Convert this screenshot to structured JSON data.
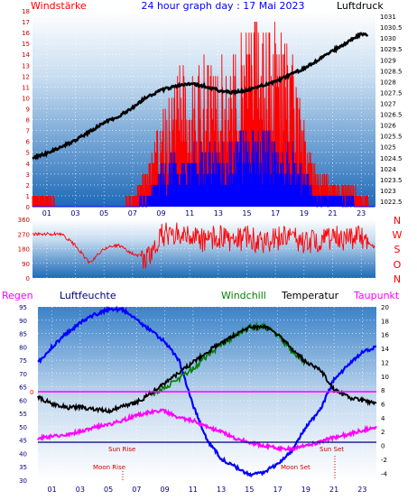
{
  "header": {
    "left_label": "Windstärke",
    "title": "24 hour graph day : 17 Mai 2023",
    "right_label": "Luftdruck"
  },
  "mid": {
    "compass": [
      "N",
      "W",
      "S",
      "O",
      "N"
    ]
  },
  "bottom_header": {
    "regen": "Regen",
    "luftfeuchte": "Luftfeuchte",
    "windchill": "Windchill",
    "temperatur": "Temperatur",
    "taupunkt": "Taupunkt"
  },
  "annotations": {
    "sun_rise": "Sun Rise",
    "sun_set": "Sun Set",
    "moon_rise": "Moon Rise",
    "moon_set": "Moon Set",
    "zero": "0"
  },
  "colors": {
    "pressure": "#000000",
    "wind_gust": "#ff0000",
    "wind_avg": "#0000ff",
    "direction": "#ff0000",
    "humidity": "#0000ff",
    "temperature": "#000000",
    "windchill": "#008000",
    "dewpoint": "#ff00ff",
    "rain": "#000080"
  },
  "chart_data": [
    {
      "type": "line",
      "title": "24 hour graph day : 17 Mai 2023",
      "x_ticks": [
        "01",
        "03",
        "05",
        "07",
        "09",
        "11",
        "13",
        "15",
        "17",
        "19",
        "21",
        "23"
      ],
      "xlim": [
        0,
        24
      ],
      "y_left_label": "Windstärke",
      "y_left_ticks": [
        0,
        1,
        2,
        3,
        4,
        5,
        6,
        7,
        8,
        9,
        10,
        11,
        12,
        13,
        14,
        15,
        16,
        17,
        18
      ],
      "y_left_lim": [
        0,
        18
      ],
      "y_right_label": "Luftdruck",
      "y_right_ticks": [
        1022.5,
        1023,
        1023.5,
        1024,
        1024.5,
        1025,
        1025.5,
        1026,
        1026.5,
        1027,
        1027.5,
        1028,
        1028.5,
        1029,
        1029.5,
        1030,
        1030.5,
        1031
      ],
      "y_right_lim": [
        1022.25,
        1031.25
      ],
      "series": [
        {
          "name": "Luftdruck",
          "axis": "right",
          "x": [
            0,
            1,
            2,
            3,
            4,
            5,
            6,
            7,
            8,
            9,
            10,
            11,
            12,
            13,
            14,
            15,
            16,
            17,
            18,
            19,
            20,
            21,
            22,
            23,
            23.5
          ],
          "values": [
            1024.5,
            1024.7,
            1025.0,
            1025.3,
            1025.7,
            1026.1,
            1026.4,
            1026.8,
            1027.3,
            1027.6,
            1027.8,
            1027.9,
            1027.8,
            1027.6,
            1027.5,
            1027.6,
            1027.8,
            1028.0,
            1028.3,
            1028.6,
            1029.0,
            1029.4,
            1029.8,
            1030.2,
            1030.1
          ]
        },
        {
          "name": "Windstärke Böen",
          "axis": "left",
          "x": [
            0,
            1,
            2,
            3,
            4,
            5,
            6,
            7,
            8,
            9,
            10,
            11,
            12,
            13,
            14,
            15,
            16,
            17,
            18,
            19,
            20,
            21,
            22,
            23,
            24
          ],
          "values": [
            1,
            1,
            0,
            0,
            0,
            0,
            0,
            1,
            3,
            7,
            10,
            11,
            12,
            11,
            12,
            13,
            15,
            14,
            12,
            7,
            3,
            2,
            2,
            1,
            0
          ]
        },
        {
          "name": "Windstärke",
          "axis": "left",
          "x": [
            0,
            1,
            2,
            3,
            4,
            5,
            6,
            7,
            8,
            9,
            10,
            11,
            12,
            13,
            14,
            15,
            16,
            17,
            18,
            19,
            20,
            21,
            22,
            23,
            24
          ],
          "values": [
            0,
            0,
            0,
            0,
            0,
            0,
            0,
            0,
            1,
            3,
            4,
            5,
            5,
            5,
            5,
            6,
            6,
            6,
            5,
            3,
            1,
            1,
            1,
            0,
            0
          ]
        }
      ]
    },
    {
      "type": "line",
      "x_ticks": [
        "01",
        "03",
        "05",
        "07",
        "09",
        "11",
        "13",
        "15",
        "17",
        "19",
        "21",
        "23"
      ],
      "xlim": [
        0,
        24
      ],
      "y_ticks": [
        0,
        90,
        180,
        270,
        360
      ],
      "ylim": [
        0,
        360
      ],
      "series": [
        {
          "name": "Windrichtung",
          "x": [
            0,
            1,
            2,
            3,
            4,
            5,
            6,
            7,
            8,
            9,
            10,
            11,
            12,
            13,
            14,
            15,
            16,
            17,
            18,
            19,
            20,
            21,
            22,
            23,
            24
          ],
          "values": [
            270,
            270,
            270,
            200,
            90,
            180,
            200,
            150,
            120,
            260,
            280,
            260,
            230,
            260,
            220,
            250,
            220,
            240,
            250,
            220,
            230,
            250,
            240,
            250,
            180
          ]
        }
      ]
    },
    {
      "type": "line",
      "x_ticks": [
        "01",
        "03",
        "05",
        "07",
        "09",
        "11",
        "13",
        "15",
        "17",
        "19",
        "21",
        "23"
      ],
      "xlim": [
        0,
        24
      ],
      "y_left_ticks": [
        30,
        35,
        40,
        45,
        50,
        55,
        60,
        65,
        70,
        75,
        80,
        85,
        90,
        95
      ],
      "y_left_lim": [
        30,
        95
      ],
      "y_right_ticks": [
        -4,
        -2,
        0,
        2,
        4,
        6,
        8,
        10,
        12,
        14,
        16,
        18,
        20
      ],
      "y_right_lim": [
        -5,
        20
      ],
      "series": [
        {
          "name": "Luftfeuchte",
          "axis": "left",
          "x": [
            0,
            1,
            2,
            3,
            4,
            5,
            6,
            7,
            8,
            9,
            10,
            11,
            12,
            13,
            14,
            15,
            16,
            17,
            18,
            19,
            20,
            21,
            22,
            23,
            24
          ],
          "values": [
            74,
            80,
            85,
            89,
            92,
            94,
            94,
            90,
            86,
            82,
            75,
            58,
            45,
            38,
            35,
            32,
            33,
            36,
            41,
            50,
            56,
            68,
            73,
            78,
            80
          ]
        },
        {
          "name": "Temperatur",
          "axis": "right",
          "x": [
            0,
            1,
            2,
            3,
            4,
            5,
            6,
            7,
            8,
            9,
            10,
            11,
            12,
            13,
            14,
            15,
            16,
            17,
            18,
            19,
            20,
            21,
            22,
            23,
            24
          ],
          "values": [
            7,
            6,
            5.5,
            5.5,
            5.2,
            5,
            5.6,
            6.2,
            7.5,
            9,
            10.5,
            12,
            13.5,
            14.8,
            16,
            17,
            17.2,
            16,
            14,
            12,
            11,
            8,
            7,
            6.5,
            6.2
          ]
        },
        {
          "name": "Windchill",
          "axis": "right",
          "x": [
            8,
            9,
            10,
            11,
            12,
            13,
            14,
            15,
            16,
            17,
            18,
            19
          ],
          "values": [
            7.3,
            8.4,
            9.6,
            11.1,
            13,
            14.6,
            15.9,
            17,
            17.2,
            16,
            13.6,
            11.8
          ]
        },
        {
          "name": "Taupunkt",
          "axis": "right",
          "x": [
            0,
            1,
            2,
            3,
            4,
            5,
            6,
            7,
            8,
            9,
            10,
            11,
            12,
            13,
            14,
            15,
            16,
            17,
            18,
            19,
            20,
            21,
            22,
            23,
            24
          ],
          "values": [
            1,
            1.3,
            1.6,
            2,
            2.6,
            3,
            3.6,
            4.4,
            4.8,
            5,
            4,
            3.6,
            2.6,
            2,
            1,
            0.5,
            0,
            -0.4,
            -0.5,
            0,
            0.5,
            1.2,
            1.6,
            2.2,
            2.6
          ]
        },
        {
          "name": "Regen",
          "axis": "right",
          "x": [
            0,
            24
          ],
          "values": [
            0,
            0
          ]
        }
      ]
    }
  ]
}
